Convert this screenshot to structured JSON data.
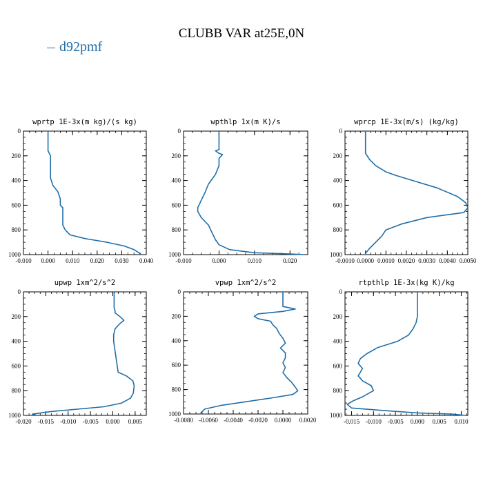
{
  "header": {
    "title": "CLUBB VAR at25E,0N",
    "legend_label": "d92pmf",
    "legend_color": "#1f6ea8"
  },
  "chart_data": [
    {
      "type": "line",
      "title": "wprtp  1E-3x(m kg)/(s kg)",
      "xlim": [
        -0.01,
        0.04
      ],
      "ylim": [
        0,
        1000
      ],
      "y_inverted": true,
      "xticks": [
        -0.01,
        0.0,
        0.01,
        0.02,
        0.03,
        0.04
      ],
      "xtick_labels": [
        "-0.010",
        "0.000",
        "0.010",
        "0.020",
        "0.030",
        "0.040"
      ],
      "yticks": [
        0,
        200,
        400,
        600,
        800,
        1000
      ],
      "series": [
        {
          "color": "#1f6ea8",
          "points": [
            [
              0.0,
              0
            ],
            [
              0.0,
              100
            ],
            [
              0.0,
              160
            ],
            [
              0.001,
              200
            ],
            [
              0.001,
              250
            ],
            [
              0.001,
              300
            ],
            [
              0.001,
              380
            ],
            [
              0.002,
              440
            ],
            [
              0.004,
              490
            ],
            [
              0.005,
              550
            ],
            [
              0.005,
              600
            ],
            [
              0.006,
              620
            ],
            [
              0.006,
              660
            ],
            [
              0.006,
              700
            ],
            [
              0.006,
              760
            ],
            [
              0.007,
              800
            ],
            [
              0.009,
              840
            ],
            [
              0.015,
              870
            ],
            [
              0.024,
              900
            ],
            [
              0.031,
              930
            ],
            [
              0.035,
              960
            ],
            [
              0.037,
              985
            ],
            [
              0.038,
              1000
            ]
          ]
        }
      ]
    },
    {
      "type": "line",
      "title": "wpthlp  1x(m K)/s",
      "xlim": [
        -0.01,
        0.025
      ],
      "ylim": [
        0,
        1000
      ],
      "y_inverted": true,
      "xticks": [
        -0.01,
        0.0,
        0.01,
        0.02
      ],
      "xtick_labels": [
        "-0.010",
        "0.000",
        "0.010",
        "0.020"
      ],
      "yticks": [
        0,
        200,
        400,
        600,
        800,
        1000
      ],
      "series": [
        {
          "color": "#1f6ea8",
          "points": [
            [
              0.0,
              0
            ],
            [
              0.0,
              100
            ],
            [
              0.0,
              150
            ],
            [
              -0.001,
              160
            ],
            [
              0.0,
              180
            ],
            [
              0.001,
              190
            ],
            [
              0.0,
              220
            ],
            [
              0.0,
              280
            ],
            [
              -0.001,
              350
            ],
            [
              -0.003,
              430
            ],
            [
              -0.004,
              500
            ],
            [
              -0.005,
              560
            ],
            [
              -0.006,
              620
            ],
            [
              -0.006,
              650
            ],
            [
              -0.005,
              700
            ],
            [
              -0.003,
              760
            ],
            [
              -0.002,
              820
            ],
            [
              -0.001,
              880
            ],
            [
              0.0,
              920
            ],
            [
              0.003,
              960
            ],
            [
              0.01,
              985
            ],
            [
              0.02,
              995
            ],
            [
              0.024,
              1000
            ]
          ]
        }
      ]
    },
    {
      "type": "line",
      "title": "wprcp  1E-3x(m/s) (kg/kg)",
      "xlim": [
        -0.001,
        0.005
      ],
      "ylim": [
        0,
        1000
      ],
      "y_inverted": true,
      "xticks": [
        -0.001,
        0.0,
        0.001,
        0.002,
        0.003,
        0.004,
        0.005
      ],
      "xtick_labels": [
        "-0.0010",
        "0.0000",
        "0.0010",
        "0.0020",
        "0.0030",
        "0.0040",
        "0.0050"
      ],
      "yticks": [
        0,
        200,
        400,
        600,
        800,
        1000
      ],
      "series": [
        {
          "color": "#1f6ea8",
          "points": [
            [
              0.0,
              0
            ],
            [
              0.0,
              100
            ],
            [
              0.0,
              180
            ],
            [
              0.0002,
              230
            ],
            [
              0.0005,
              280
            ],
            [
              0.001,
              330
            ],
            [
              0.0015,
              360
            ],
            [
              0.0025,
              410
            ],
            [
              0.0035,
              460
            ],
            [
              0.0045,
              530
            ],
            [
              0.0049,
              580
            ],
            [
              0.005,
              620
            ],
            [
              0.0048,
              660
            ],
            [
              0.003,
              700
            ],
            [
              0.0018,
              750
            ],
            [
              0.001,
              800
            ],
            [
              0.0008,
              850
            ],
            [
              0.0005,
              900
            ],
            [
              0.0002,
              950
            ],
            [
              0.0,
              990
            ],
            [
              0.0,
              1000
            ]
          ]
        }
      ]
    },
    {
      "type": "line",
      "title": "upwp  1xm^2/s^2",
      "xlim": [
        -0.02,
        0.0075
      ],
      "ylim": [
        0,
        1000
      ],
      "y_inverted": true,
      "xticks": [
        -0.02,
        -0.015,
        -0.01,
        -0.005,
        0.0,
        0.005
      ],
      "xtick_labels": [
        "-0.020",
        "-0.015",
        "-0.010",
        "-0.005",
        "0.000",
        "0.005"
      ],
      "yticks": [
        0,
        200,
        400,
        600,
        800,
        1000
      ],
      "series": [
        {
          "color": "#1f6ea8",
          "points": [
            [
              0.0003,
              0
            ],
            [
              0.0003,
              100
            ],
            [
              0.0003,
              130
            ],
            [
              0.0005,
              150
            ],
            [
              0.0005,
              170
            ],
            [
              0.0016,
              200
            ],
            [
              0.0025,
              230
            ],
            [
              0.0015,
              260
            ],
            [
              0.0005,
              300
            ],
            [
              0.0002,
              350
            ],
            [
              0.0002,
              400
            ],
            [
              0.0004,
              450
            ],
            [
              0.0006,
              500
            ],
            [
              0.0008,
              550
            ],
            [
              0.001,
              600
            ],
            [
              0.0012,
              650
            ],
            [
              0.003,
              680
            ],
            [
              0.0045,
              720
            ],
            [
              0.0048,
              760
            ],
            [
              0.0046,
              820
            ],
            [
              0.004,
              860
            ],
            [
              0.002,
              900
            ],
            [
              -0.002,
              930
            ],
            [
              -0.008,
              950
            ],
            [
              -0.014,
              970
            ],
            [
              -0.018,
              990
            ],
            [
              -0.017,
              1000
            ]
          ]
        }
      ]
    },
    {
      "type": "line",
      "title": "vpwp  1xm^2/s^2",
      "xlim": [
        -0.008,
        0.002
      ],
      "ylim": [
        0,
        1000
      ],
      "y_inverted": true,
      "xticks": [
        -0.008,
        -0.006,
        -0.004,
        -0.002,
        0.0,
        0.002
      ],
      "xtick_labels": [
        "-0.0080",
        "-0.0060",
        "-0.0040",
        "-0.0020",
        "0.0000",
        "0.0020"
      ],
      "yticks": [
        0,
        200,
        400,
        600,
        800,
        1000
      ],
      "series": [
        {
          "color": "#1f6ea8",
          "points": [
            [
              0.0,
              0
            ],
            [
              0.0,
              60
            ],
            [
              0.0,
              100
            ],
            [
              0.0,
              120
            ],
            [
              0.001,
              140
            ],
            [
              0.0,
              160
            ],
            [
              -0.002,
              180
            ],
            [
              -0.0023,
              200
            ],
            [
              -0.002,
              220
            ],
            [
              -0.001,
              240
            ],
            [
              -0.0008,
              270
            ],
            [
              -0.0005,
              300
            ],
            [
              -0.0003,
              340
            ],
            [
              0.0,
              380
            ],
            [
              0.0002,
              420
            ],
            [
              -0.0002,
              460
            ],
            [
              0.0002,
              500
            ],
            [
              0.0002,
              540
            ],
            [
              0.0,
              580
            ],
            [
              0.0002,
              620
            ],
            [
              0.0,
              660
            ],
            [
              0.0003,
              700
            ],
            [
              0.0007,
              740
            ],
            [
              0.001,
              780
            ],
            [
              0.0012,
              810
            ],
            [
              0.0008,
              840
            ],
            [
              -0.001,
              870
            ],
            [
              -0.003,
              900
            ],
            [
              -0.005,
              930
            ],
            [
              -0.0063,
              960
            ],
            [
              -0.0066,
              990
            ],
            [
              -0.0065,
              1000
            ]
          ]
        }
      ]
    },
    {
      "type": "line",
      "title": "rtpthlp  1E-3x(kg K)/kg",
      "xlim": [
        -0.0165,
        0.0115
      ],
      "ylim": [
        0,
        1000
      ],
      "y_inverted": true,
      "xticks": [
        -0.015,
        -0.01,
        -0.005,
        0.0,
        0.005,
        0.01
      ],
      "xtick_labels": [
        "-0.015",
        "-0.010",
        "-0.005",
        "0.000",
        "0.005",
        "0.010"
      ],
      "yticks": [
        0,
        200,
        400,
        600,
        800,
        1000
      ],
      "series": [
        {
          "color": "#1f6ea8",
          "points": [
            [
              0.0,
              0
            ],
            [
              0.0,
              100
            ],
            [
              0.0,
              200
            ],
            [
              -0.0003,
              250
            ],
            [
              -0.001,
              300
            ],
            [
              -0.002,
              350
            ],
            [
              -0.0045,
              400
            ],
            [
              -0.009,
              450
            ],
            [
              -0.0115,
              500
            ],
            [
              -0.013,
              540
            ],
            [
              -0.0135,
              580
            ],
            [
              -0.0125,
              620
            ],
            [
              -0.013,
              650
            ],
            [
              -0.0135,
              680
            ],
            [
              -0.0125,
              720
            ],
            [
              -0.0105,
              760
            ],
            [
              -0.01,
              800
            ],
            [
              -0.0125,
              850
            ],
            [
              -0.0145,
              880
            ],
            [
              -0.016,
              910
            ],
            [
              -0.015,
              940
            ],
            [
              -0.008,
              960
            ],
            [
              0.0,
              980
            ],
            [
              0.008,
              990
            ],
            [
              0.011,
              1000
            ]
          ]
        }
      ]
    }
  ]
}
